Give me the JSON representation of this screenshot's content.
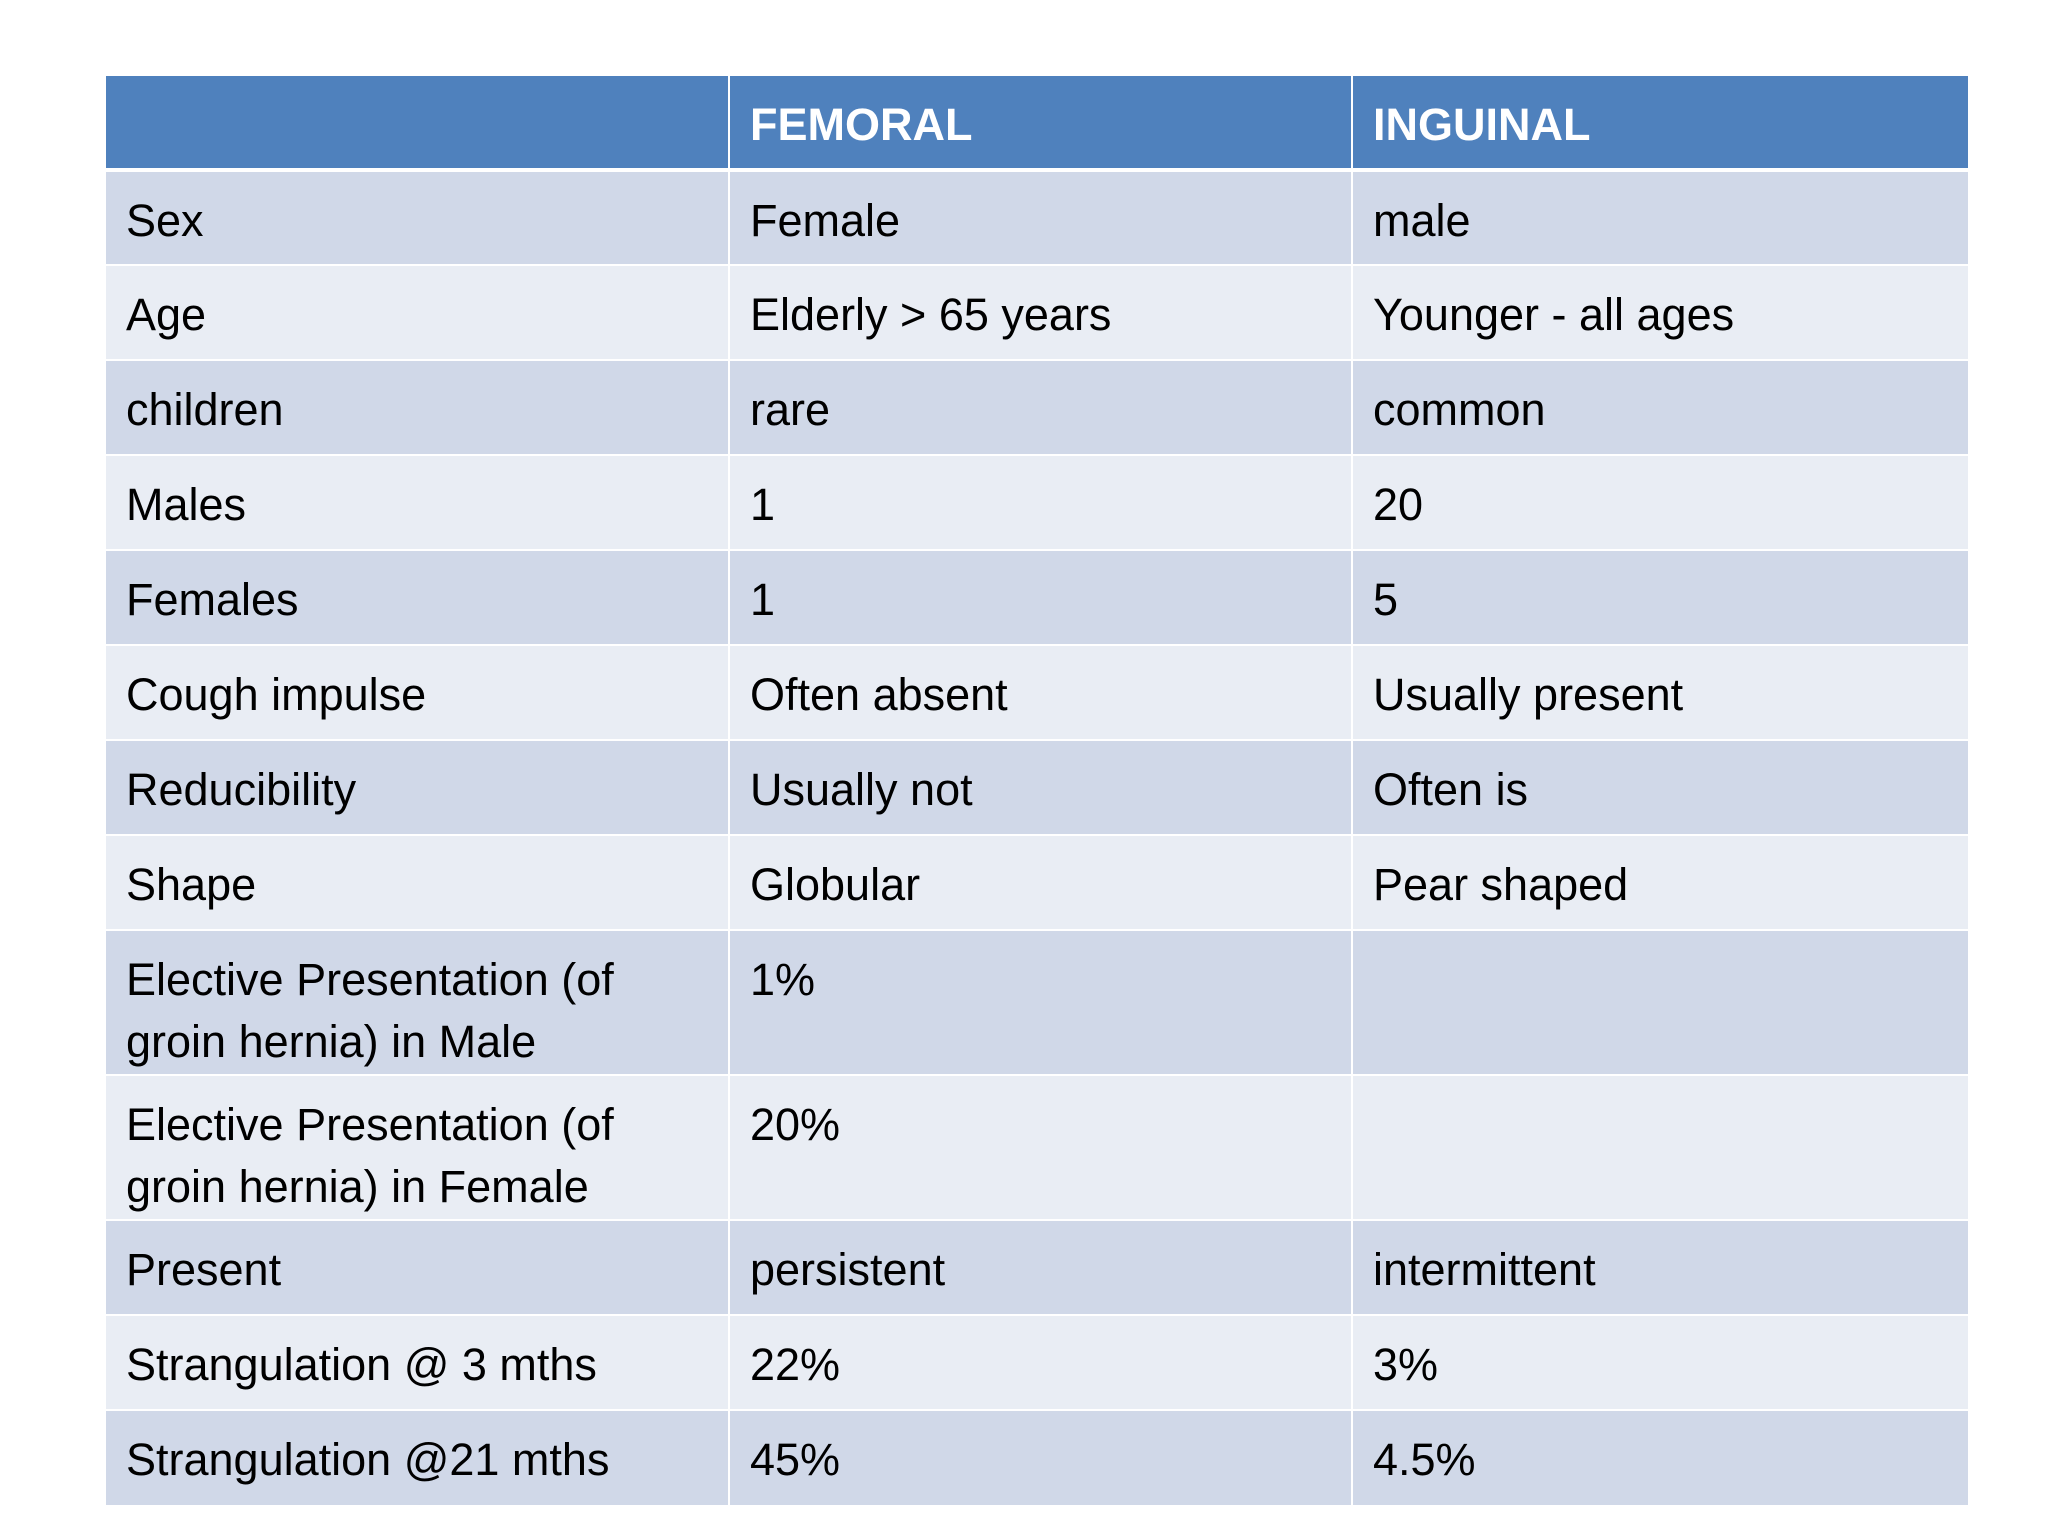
{
  "table": {
    "headers": [
      "",
      "FEMORAL",
      "INGUINAL"
    ],
    "rows": [
      [
        "Sex",
        "Female",
        "male"
      ],
      [
        "Age",
        "Elderly > 65 years",
        "Younger - all ages"
      ],
      [
        "children",
        "rare",
        "common"
      ],
      [
        "Males",
        "1",
        "20"
      ],
      [
        "Females",
        "1",
        "5"
      ],
      [
        "Cough impulse",
        "Often absent",
        "Usually present"
      ],
      [
        "Reducibility",
        "Usually not",
        "Often is"
      ],
      [
        "Shape",
        "Globular",
        "Pear shaped"
      ],
      [
        "Elective Presentation (of groin hernia) in Male",
        "1%",
        ""
      ],
      [
        "Elective Presentation (of groin hernia) in Female",
        "20%",
        ""
      ],
      [
        "Present",
        "persistent",
        "intermittent"
      ],
      [
        "Strangulation @ 3 mths",
        "22%",
        "3%"
      ],
      [
        "Strangulation @21 mths",
        "45%",
        "4.5%"
      ]
    ],
    "colors": {
      "header_bg": "#4f81bd",
      "header_text": "#ffffff",
      "row_band_dark": "#d0d8e8",
      "row_band_light": "#e9edf4"
    }
  }
}
